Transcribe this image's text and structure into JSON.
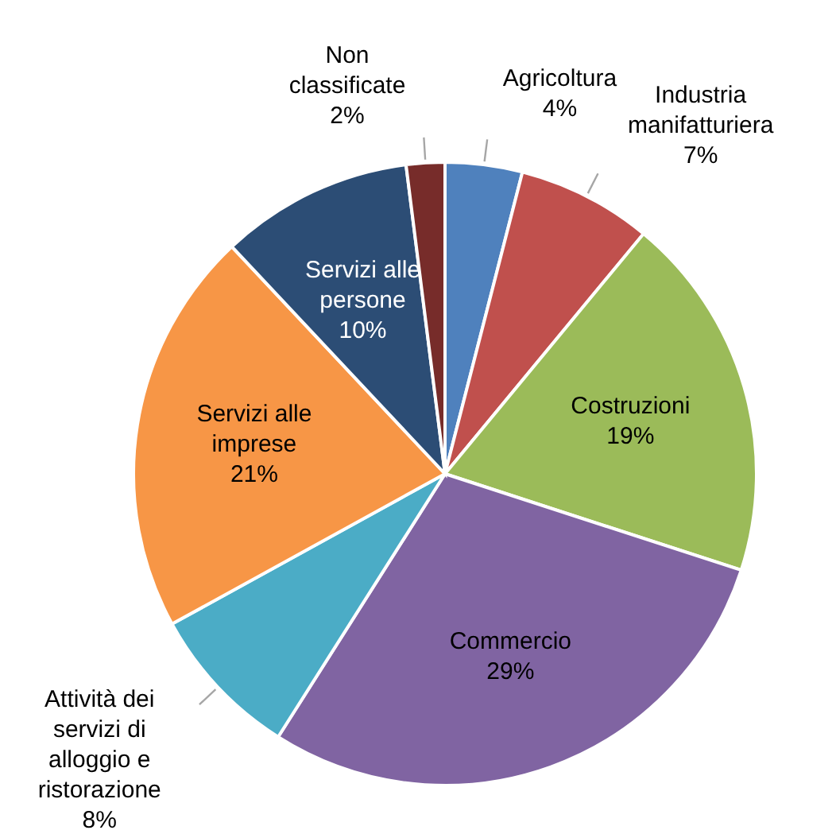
{
  "chart_data": {
    "type": "pie",
    "categories": [
      "Agricoltura",
      "Industria manifatturiera",
      "Costruzioni",
      "Commercio",
      "Attività dei servizi di alloggio e ristorazione",
      "Servizi alle imprese",
      "Servizi alle persone",
      "Non classificate"
    ],
    "values": [
      4,
      7,
      19,
      29,
      8,
      21,
      10,
      2
    ],
    "colors": [
      "#4f81bd",
      "#c0504d",
      "#9bbb59",
      "#8064a2",
      "#4bacc6",
      "#f79646",
      "#2c4d75",
      "#772c2a"
    ],
    "value_labels": [
      "4%",
      "7%",
      "19%",
      "29%",
      "8%",
      "21%",
      "10%",
      "2%"
    ]
  }
}
